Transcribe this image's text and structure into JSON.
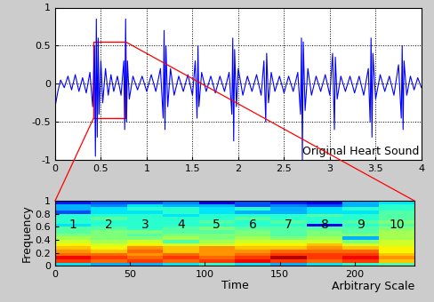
{
  "chart_data": [
    {
      "type": "line",
      "annotation": "Original Heart Sound",
      "color": "#0000ff",
      "xlim": [
        0,
        4
      ],
      "xticks": [
        0,
        0.5,
        1,
        1.5,
        2,
        2.5,
        3,
        3.5,
        4
      ],
      "ylim": [
        -1,
        1
      ],
      "yticks": [
        -1,
        -0.5,
        0,
        0.5,
        1
      ],
      "grid": true,
      "zoom": {
        "x": [
          0.42,
          0.77
        ],
        "y": [
          -0.45,
          0.55
        ],
        "color": "#ff0000"
      },
      "x": [
        0,
        0.03,
        0.06,
        0.1,
        0.14,
        0.18,
        0.22,
        0.26,
        0.3,
        0.34,
        0.38,
        0.41,
        0.43,
        0.44,
        0.45,
        0.46,
        0.47,
        0.48,
        0.5,
        0.52,
        0.55,
        0.58,
        0.61,
        0.64,
        0.68,
        0.72,
        0.75,
        0.76,
        0.77,
        0.78,
        0.79,
        0.81,
        0.85,
        0.9,
        0.95,
        1.0,
        1.05,
        1.1,
        1.15,
        1.18,
        1.19,
        1.2,
        1.21,
        1.23,
        1.26,
        1.3,
        1.35,
        1.4,
        1.45,
        1.5,
        1.53,
        1.55,
        1.56,
        1.57,
        1.6,
        1.65,
        1.7,
        1.75,
        1.8,
        1.85,
        1.9,
        1.93,
        1.94,
        1.95,
        1.96,
        1.98,
        2.0,
        2.05,
        2.1,
        2.15,
        2.2,
        2.25,
        2.28,
        2.3,
        2.31,
        2.33,
        2.36,
        2.4,
        2.45,
        2.5,
        2.55,
        2.6,
        2.65,
        2.68,
        2.69,
        2.7,
        2.71,
        2.73,
        2.76,
        2.8,
        2.85,
        2.9,
        2.95,
        3.0,
        3.03,
        3.05,
        3.06,
        3.08,
        3.12,
        3.17,
        3.22,
        3.27,
        3.32,
        3.37,
        3.42,
        3.44,
        3.45,
        3.46,
        3.47,
        3.5,
        3.55,
        3.6,
        3.65,
        3.7,
        3.75,
        3.78,
        3.79,
        3.8,
        3.81,
        3.84,
        3.88,
        3.92,
        3.96,
        4.0
      ],
      "values": [
        -0.3,
        -0.1,
        0.05,
        -0.05,
        0.1,
        -0.08,
        0.12,
        -0.1,
        0.08,
        -0.12,
        0.15,
        -0.3,
        0.5,
        -0.95,
        0.85,
        -0.7,
        0.6,
        -0.4,
        0.3,
        -0.25,
        0.2,
        -0.15,
        0.12,
        -0.1,
        0.1,
        -0.15,
        0.3,
        -0.6,
        0.85,
        -0.5,
        0.3,
        -0.2,
        0.1,
        -0.08,
        0.1,
        -0.1,
        0.12,
        -0.1,
        0.2,
        -0.45,
        0.7,
        -0.6,
        0.5,
        -0.3,
        0.2,
        -0.15,
        0.1,
        -0.1,
        0.12,
        -0.15,
        0.3,
        -0.45,
        0.5,
        -0.3,
        0.15,
        -0.1,
        0.1,
        -0.12,
        0.1,
        -0.1,
        0.15,
        -0.4,
        0.6,
        -0.75,
        0.45,
        -0.3,
        0.2,
        -0.15,
        0.1,
        -0.1,
        0.12,
        -0.15,
        0.3,
        -0.5,
        0.4,
        -0.25,
        0.15,
        -0.1,
        0.1,
        -0.12,
        0.1,
        -0.1,
        0.15,
        -0.4,
        0.6,
        -1.0,
        0.55,
        -0.35,
        0.2,
        -0.15,
        0.1,
        -0.1,
        0.12,
        -0.15,
        0.4,
        -0.6,
        0.35,
        -0.2,
        0.1,
        -0.1,
        0.1,
        -0.12,
        0.1,
        -0.15,
        0.2,
        -0.5,
        0.6,
        -0.7,
        0.4,
        -0.2,
        0.12,
        -0.1,
        0.1,
        -0.15,
        0.25,
        -0.45,
        0.5,
        -0.6,
        0.3,
        -0.15,
        0.1,
        -0.08,
        0.08,
        -0.05
      ]
    },
    {
      "type": "heatmap",
      "xlabel": "Time",
      "ylabel": "Frequency",
      "annotation": "Arbitrary Scale",
      "xlim": [
        0,
        240
      ],
      "xticks": [
        0,
        50,
        100,
        150,
        200
      ],
      "ylim": [
        0,
        1
      ],
      "yticks": [
        0,
        0.2,
        0.4,
        0.6,
        0.8,
        1
      ],
      "grid": false,
      "x_edges": [
        0,
        24,
        48,
        72,
        96,
        120,
        144,
        168,
        192,
        216,
        240
      ],
      "y_edges": [
        0,
        0.05,
        0.1,
        0.15,
        0.2,
        0.25,
        0.3,
        0.35,
        0.4,
        0.45,
        0.5,
        0.55,
        0.6,
        0.65,
        0.7,
        0.75,
        0.8,
        0.85,
        0.9,
        0.95,
        1
      ],
      "color_range": [
        0,
        1
      ],
      "segment_labels": [
        1,
        2,
        3,
        4,
        5,
        6,
        7,
        8,
        9,
        10
      ],
      "cells": [
        [
          0.35,
          0.3,
          0.3,
          0.35,
          0.4,
          0.35,
          0.3,
          0.35,
          0.4,
          0.45
        ],
        [
          0.85,
          0.8,
          0.85,
          0.8,
          0.85,
          0.9,
          0.85,
          0.8,
          0.85,
          0.7
        ],
        [
          0.9,
          0.85,
          0.8,
          0.85,
          0.8,
          0.85,
          0.95,
          0.85,
          0.9,
          0.75
        ],
        [
          0.8,
          0.8,
          0.75,
          0.8,
          0.75,
          0.8,
          0.85,
          0.85,
          0.85,
          0.7
        ],
        [
          0.75,
          0.7,
          0.8,
          0.7,
          0.75,
          0.75,
          0.8,
          0.8,
          0.8,
          0.65
        ],
        [
          0.7,
          0.65,
          0.75,
          0.7,
          0.75,
          0.7,
          0.7,
          0.75,
          0.7,
          0.65
        ],
        [
          0.65,
          0.6,
          0.65,
          0.6,
          0.6,
          0.65,
          0.65,
          0.7,
          0.6,
          0.6
        ],
        [
          0.6,
          0.55,
          0.6,
          0.45,
          0.55,
          0.6,
          0.6,
          0.6,
          0.5,
          0.6
        ],
        [
          0.55,
          0.5,
          0.5,
          0.55,
          0.5,
          0.55,
          0.5,
          0.55,
          0.3,
          0.55
        ],
        [
          0.5,
          0.5,
          0.45,
          0.5,
          0.5,
          0.5,
          0.45,
          0.5,
          0.5,
          0.55
        ],
        [
          0.45,
          0.5,
          0.5,
          0.45,
          0.45,
          0.5,
          0.45,
          0.5,
          0.45,
          0.55
        ],
        [
          0.45,
          0.45,
          0.4,
          0.45,
          0.5,
          0.45,
          0.45,
          0.45,
          0.45,
          0.5
        ],
        [
          0.35,
          0.4,
          0.4,
          0.4,
          0.4,
          0.4,
          0.4,
          0.1,
          0.4,
          0.45
        ],
        [
          0.4,
          0.4,
          0.4,
          0.4,
          0.45,
          0.4,
          0.45,
          0.4,
          0.45,
          0.5
        ],
        [
          0.4,
          0.45,
          0.4,
          0.4,
          0.4,
          0.45,
          0.4,
          0.4,
          0.4,
          0.45
        ],
        [
          0.4,
          0.4,
          0.4,
          0.35,
          0.4,
          0.4,
          0.4,
          0.45,
          0.4,
          0.45
        ],
        [
          0.2,
          0.35,
          0.35,
          0.4,
          0.35,
          0.3,
          0.3,
          0.35,
          0.35,
          0.45
        ],
        [
          0.3,
          0.35,
          0.4,
          0.4,
          0.35,
          0.4,
          0.3,
          0.35,
          0.4,
          0.4
        ],
        [
          0.3,
          0.25,
          0.35,
          0.3,
          0.3,
          0.2,
          0.25,
          0.2,
          0.3,
          0.4
        ],
        [
          0.15,
          0.2,
          0.2,
          0.25,
          0.1,
          0.2,
          0.15,
          0.1,
          0.3,
          0.35
        ]
      ]
    }
  ]
}
